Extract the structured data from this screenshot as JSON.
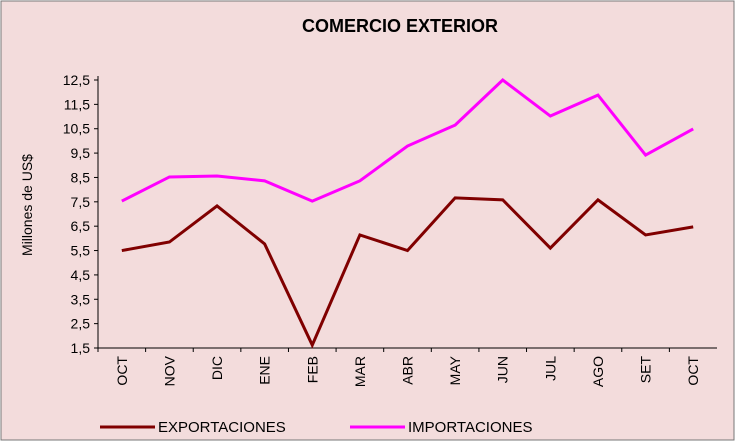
{
  "chart_data": {
    "type": "line",
    "title": "COMERCIO EXTERIOR",
    "y_label": "Millones de US$",
    "categories": [
      "OCT",
      "NOV",
      "DIC",
      "ENE",
      "FEB",
      "MAR",
      "ABR",
      "MAY",
      "JUN",
      "JUL",
      "AGO",
      "SET",
      "OCT"
    ],
    "series": [
      {
        "name": "EXPORTACIONES",
        "color": "#800000",
        "values": [
          5.5,
          5.85,
          7.33,
          5.77,
          1.62,
          6.14,
          5.5,
          7.66,
          7.58,
          5.6,
          7.58,
          6.14,
          6.47
        ]
      },
      {
        "name": "IMPORTACIONES",
        "color": "#ff00ff",
        "values": [
          7.53,
          8.52,
          8.56,
          8.36,
          7.53,
          8.36,
          9.79,
          10.65,
          12.5,
          11.02,
          11.88,
          9.42,
          10.49
        ]
      }
    ],
    "ylim": [
      1.5,
      12.5
    ],
    "yticks": [
      {
        "value": 1.5,
        "label": "1,5"
      },
      {
        "value": 2.5,
        "label": "2,5"
      },
      {
        "value": 3.5,
        "label": "3,5"
      },
      {
        "value": 4.5,
        "label": "4,5"
      },
      {
        "value": 5.5,
        "label": "5,5"
      },
      {
        "value": 6.5,
        "label": "6,5"
      },
      {
        "value": 7.5,
        "label": "7,5"
      },
      {
        "value": 8.5,
        "label": "8,5"
      },
      {
        "value": 9.5,
        "label": "9,5"
      },
      {
        "value": 10.5,
        "label": "10,5"
      },
      {
        "value": 11.5,
        "label": "11,5"
      },
      {
        "value": 12.5,
        "label": "12,5"
      }
    ],
    "grid": false,
    "legend": "bottom"
  }
}
